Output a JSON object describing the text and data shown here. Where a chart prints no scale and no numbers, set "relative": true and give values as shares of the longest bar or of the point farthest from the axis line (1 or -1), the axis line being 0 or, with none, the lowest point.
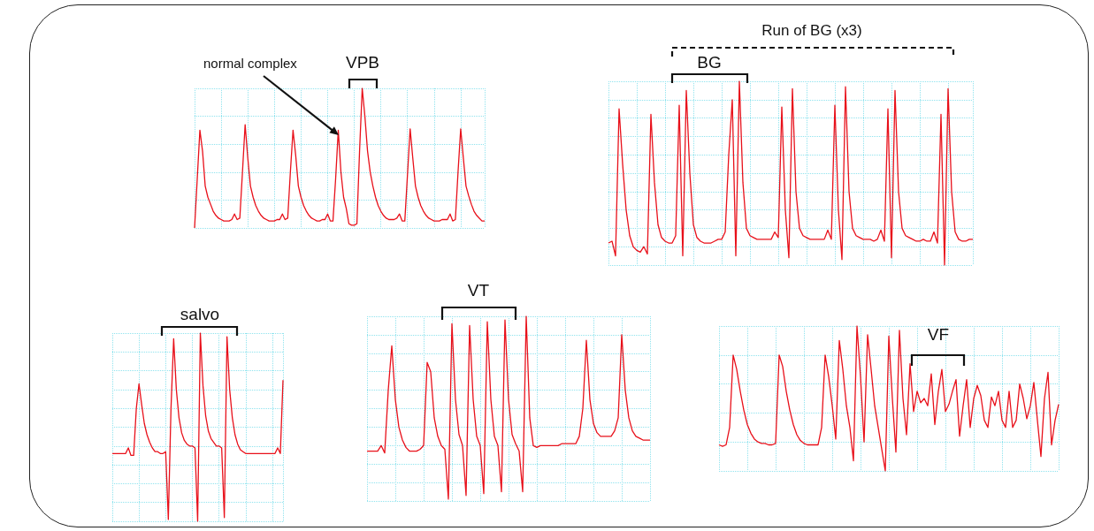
{
  "chart_data": [
    {
      "type": "line",
      "relative": true,
      "grid": true,
      "annotations": [
        "normal complex",
        "VPB"
      ],
      "categories": [
        null,
        null,
        null,
        null,
        null,
        null,
        null,
        null,
        null,
        null,
        null,
        null,
        null,
        null,
        null,
        null,
        null,
        null,
        null,
        null,
        null,
        null,
        null,
        null,
        null,
        null,
        null,
        null,
        null,
        null,
        null,
        null,
        null,
        null,
        null,
        null,
        null,
        null,
        null,
        null,
        null,
        null,
        null,
        null,
        null,
        null,
        null,
        null,
        null,
        null,
        null,
        null,
        null,
        null,
        null,
        null,
        null,
        null,
        null,
        null,
        null,
        null,
        null,
        null,
        null,
        null,
        null,
        null,
        null,
        null,
        null,
        null,
        null,
        null,
        null,
        null,
        null,
        null,
        null,
        null,
        null,
        null,
        null,
        null,
        null,
        null,
        null,
        null,
        null,
        null,
        null,
        null,
        null,
        null,
        null,
        null,
        null,
        null,
        null,
        null,
        null,
        null,
        null,
        null,
        null,
        null,
        null,
        null,
        null,
        null
      ],
      "series": [
        {
          "color": "#e8101a",
          "values": [
            0.0,
            0.35,
            0.7,
            0.55,
            0.3,
            0.22,
            0.17,
            0.12,
            0.09,
            0.07,
            0.06,
            0.05,
            0.05,
            0.05,
            0.06,
            0.1,
            0.06,
            0.07,
            0.4,
            0.74,
            0.5,
            0.3,
            0.22,
            0.16,
            0.12,
            0.09,
            0.07,
            0.06,
            0.05,
            0.05,
            0.05,
            0.06,
            0.06,
            0.1,
            0.06,
            0.07,
            0.4,
            0.7,
            0.52,
            0.3,
            0.22,
            0.16,
            0.12,
            0.09,
            0.07,
            0.06,
            0.05,
            0.05,
            0.06,
            0.06,
            0.1,
            0.05,
            0.05,
            0.35,
            0.7,
            0.4,
            0.22,
            0.14,
            0.03,
            0.02,
            0.02,
            0.03,
            0.55,
            1.0,
            0.8,
            0.55,
            0.4,
            0.3,
            0.22,
            0.16,
            0.12,
            0.09,
            0.07,
            0.06,
            0.06,
            0.06,
            0.07,
            0.1,
            0.05,
            0.05,
            0.38,
            0.71,
            0.5,
            0.3,
            0.22,
            0.16,
            0.12,
            0.09,
            0.07,
            0.06,
            0.05,
            0.05,
            0.05,
            0.06,
            0.06,
            0.06,
            0.1,
            0.05,
            0.06,
            0.4,
            0.71,
            0.5,
            0.3,
            0.23,
            0.17,
            0.12,
            0.09,
            0.07,
            0.05,
            0.05
          ]
        }
      ]
    },
    {
      "type": "line",
      "relative": true,
      "grid": true,
      "annotations": [
        "Run of BG (x3)",
        "BG"
      ],
      "categories": [
        null,
        null,
        null,
        null,
        null,
        null,
        null,
        null,
        null,
        null,
        null,
        null,
        null,
        null,
        null,
        null,
        null,
        null,
        null,
        null,
        null,
        null,
        null,
        null,
        null,
        null,
        null,
        null,
        null,
        null,
        null,
        null,
        null,
        null,
        null,
        null,
        null,
        null,
        null,
        null,
        null,
        null,
        null,
        null,
        null,
        null,
        null,
        null,
        null,
        null,
        null,
        null,
        null,
        null,
        null,
        null,
        null,
        null,
        null,
        null,
        null,
        null,
        null,
        null,
        null,
        null,
        null,
        null,
        null,
        null,
        null,
        null,
        null,
        null,
        null,
        null,
        null,
        null,
        null,
        null,
        null,
        null,
        null,
        null,
        null,
        null,
        null,
        null,
        null,
        null,
        null,
        null,
        null,
        null,
        null,
        null,
        null,
        null,
        null,
        null,
        null,
        null,
        null,
        null
      ],
      "series": [
        {
          "color": "#e8101a",
          "values": [
            0.12,
            0.13,
            0.05,
            0.85,
            0.55,
            0.3,
            0.16,
            0.1,
            0.08,
            0.07,
            0.1,
            0.06,
            0.82,
            0.45,
            0.22,
            0.15,
            0.13,
            0.12,
            0.12,
            0.16,
            0.87,
            0.05,
            0.95,
            0.5,
            0.22,
            0.15,
            0.13,
            0.12,
            0.12,
            0.12,
            0.13,
            0.14,
            0.14,
            0.18,
            0.6,
            0.9,
            0.05,
            1.0,
            0.45,
            0.2,
            0.16,
            0.15,
            0.14,
            0.14,
            0.14,
            0.14,
            0.14,
            0.18,
            0.15,
            0.86,
            0.3,
            0.04,
            0.96,
            0.4,
            0.2,
            0.16,
            0.15,
            0.14,
            0.14,
            0.14,
            0.14,
            0.14,
            0.19,
            0.14,
            0.87,
            0.3,
            0.03,
            0.97,
            0.4,
            0.2,
            0.16,
            0.15,
            0.14,
            0.14,
            0.14,
            0.13,
            0.14,
            0.19,
            0.13,
            0.85,
            0.04,
            0.95,
            0.4,
            0.2,
            0.16,
            0.15,
            0.14,
            0.13,
            0.13,
            0.14,
            0.13,
            0.13,
            0.18,
            0.12,
            0.82,
            0.0,
            0.96,
            0.4,
            0.18,
            0.14,
            0.13,
            0.13,
            0.14,
            0.14
          ]
        }
      ]
    },
    {
      "type": "line",
      "relative": true,
      "grid": true,
      "annotations": [
        "salvo"
      ],
      "categories": [
        null,
        null,
        null,
        null,
        null,
        null,
        null,
        null,
        null,
        null,
        null,
        null,
        null,
        null,
        null,
        null,
        null,
        null,
        null,
        null,
        null,
        null,
        null,
        null,
        null,
        null,
        null,
        null,
        null,
        null,
        null,
        null,
        null,
        null,
        null,
        null,
        null,
        null,
        null,
        null,
        null,
        null,
        null,
        null,
        null,
        null,
        null,
        null,
        null,
        null,
        null,
        null,
        null,
        null,
        null,
        null,
        null,
        null,
        null,
        null,
        null,
        null,
        null,
        null,
        null
      ],
      "series": [
        {
          "color": "#e8101a",
          "values": [
            0.36,
            0.36,
            0.36,
            0.36,
            0.36,
            0.36,
            0.39,
            0.35,
            0.35,
            0.6,
            0.73,
            0.62,
            0.52,
            0.46,
            0.42,
            0.39,
            0.37,
            0.37,
            0.36,
            0.36,
            0.37,
            0.01,
            0.6,
            0.97,
            0.7,
            0.55,
            0.47,
            0.43,
            0.41,
            0.4,
            0.4,
            0.39,
            0.0,
            1.0,
            0.72,
            0.56,
            0.48,
            0.44,
            0.42,
            0.4,
            0.4,
            0.39,
            0.02,
            0.98,
            0.7,
            0.55,
            0.46,
            0.41,
            0.38,
            0.37,
            0.36,
            0.36,
            0.36,
            0.36,
            0.36,
            0.36,
            0.36,
            0.36,
            0.36,
            0.36,
            0.36,
            0.36,
            0.39,
            0.36,
            0.75
          ]
        }
      ]
    },
    {
      "type": "line",
      "relative": true,
      "grid": true,
      "annotations": [
        "VT"
      ],
      "categories": [
        null,
        null,
        null,
        null,
        null,
        null,
        null,
        null,
        null,
        null,
        null,
        null,
        null,
        null,
        null,
        null,
        null,
        null,
        null,
        null,
        null,
        null,
        null,
        null,
        null,
        null,
        null,
        null,
        null,
        null,
        null,
        null,
        null,
        null,
        null,
        null,
        null,
        null,
        null,
        null,
        null,
        null,
        null,
        null,
        null,
        null,
        null,
        null,
        null,
        null,
        null,
        null,
        null,
        null,
        null,
        null,
        null,
        null,
        null,
        null,
        null,
        null,
        null,
        null,
        null,
        null,
        null,
        null,
        null,
        null,
        null,
        null,
        null,
        null,
        null,
        null,
        null,
        null,
        null,
        null,
        null
      ],
      "series": [
        {
          "color": "#e8101a",
          "values": [
            0.27,
            0.27,
            0.27,
            0.27,
            0.3,
            0.26,
            0.6,
            0.84,
            0.55,
            0.4,
            0.33,
            0.29,
            0.27,
            0.27,
            0.27,
            0.28,
            0.3,
            0.75,
            0.7,
            0.45,
            0.35,
            0.3,
            0.28,
            0.01,
            0.96,
            0.55,
            0.36,
            0.3,
            0.03,
            0.95,
            0.55,
            0.35,
            0.3,
            0.04,
            0.97,
            0.55,
            0.35,
            0.3,
            0.05,
            0.98,
            0.55,
            0.36,
            0.31,
            0.27,
            0.05,
            1.0,
            0.45,
            0.3,
            0.29,
            0.3,
            0.3,
            0.3,
            0.3,
            0.3,
            0.3,
            0.31,
            0.31,
            0.31,
            0.31,
            0.31,
            0.35,
            0.5,
            0.87,
            0.55,
            0.42,
            0.37,
            0.35,
            0.35,
            0.35,
            0.35,
            0.38,
            0.45,
            0.9,
            0.6,
            0.45,
            0.38,
            0.35,
            0.34,
            0.33,
            0.33,
            0.33
          ]
        }
      ]
    },
    {
      "type": "line",
      "relative": true,
      "grid": true,
      "annotations": [
        "VF"
      ],
      "categories": [
        null,
        null,
        null,
        null,
        null,
        null,
        null,
        null,
        null,
        null,
        null,
        null,
        null,
        null,
        null,
        null,
        null,
        null,
        null,
        null,
        null,
        null,
        null,
        null,
        null,
        null,
        null,
        null,
        null,
        null,
        null,
        null,
        null,
        null,
        null,
        null,
        null,
        null,
        null,
        null,
        null,
        null,
        null,
        null,
        null,
        null,
        null,
        null,
        null,
        null,
        null,
        null,
        null,
        null,
        null,
        null,
        null,
        null,
        null,
        null,
        null,
        null,
        null,
        null,
        null,
        null,
        null,
        null,
        null,
        null,
        null,
        null,
        null,
        null,
        null,
        null,
        null,
        null,
        null,
        null,
        null,
        null,
        null,
        null,
        null,
        null,
        null,
        null,
        null,
        null,
        null,
        null,
        null,
        null,
        null,
        null,
        null
      ],
      "series": [
        {
          "color": "#e8101a",
          "values": [
            0.18,
            0.17,
            0.18,
            0.3,
            0.8,
            0.7,
            0.55,
            0.42,
            0.32,
            0.26,
            0.22,
            0.2,
            0.19,
            0.19,
            0.18,
            0.18,
            0.19,
            0.8,
            0.72,
            0.55,
            0.42,
            0.32,
            0.25,
            0.21,
            0.19,
            0.18,
            0.18,
            0.18,
            0.18,
            0.3,
            0.8,
            0.65,
            0.45,
            0.22,
            0.9,
            0.7,
            0.45,
            0.3,
            0.07,
            1.0,
            0.65,
            0.2,
            0.94,
            0.7,
            0.45,
            0.3,
            0.15,
            0.0,
            0.93,
            0.5,
            0.13,
            0.97,
            0.5,
            0.25,
            0.74,
            0.41,
            0.55,
            0.47,
            0.5,
            0.45,
            0.67,
            0.32,
            0.55,
            0.7,
            0.41,
            0.46,
            0.55,
            0.63,
            0.24,
            0.45,
            0.63,
            0.3,
            0.5,
            0.59,
            0.52,
            0.35,
            0.3,
            0.51,
            0.45,
            0.55,
            0.35,
            0.3,
            0.55,
            0.3,
            0.35,
            0.6,
            0.5,
            0.36,
            0.45,
            0.61,
            0.35,
            0.1,
            0.5,
            0.68,
            0.18,
            0.35,
            0.46
          ]
        }
      ]
    }
  ]
}
